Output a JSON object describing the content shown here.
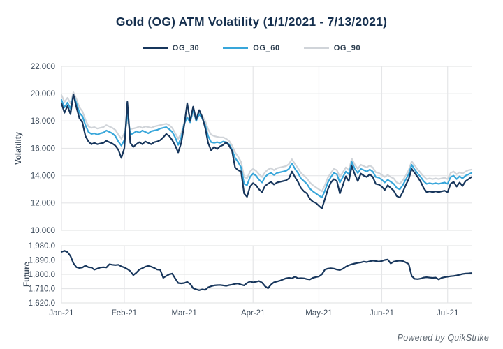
{
  "title": "Gold (OG) ATM Volatility (1/1/2021 - 7/13/2021)",
  "footer": "Powered by QuikStrike",
  "colors": {
    "navy": "#17365C",
    "blue": "#38A6DA",
    "gray": "#D0D4D9",
    "grid": "#E5E6E8",
    "tick_text": "#3E4C5C"
  },
  "legend": [
    {
      "label": "OG_30",
      "color": "#17365C"
    },
    {
      "label": "OG_60",
      "color": "#38A6DA"
    },
    {
      "label": "OG_90",
      "color": "#D0D4D9"
    }
  ],
  "chart_data": [
    {
      "type": "line",
      "title": "Gold (OG) ATM Volatility (1/1/2021 - 7/13/2021)",
      "ylabel": "Volatility",
      "xlabel": "",
      "ylim": [
        10,
        22
      ],
      "grid": true,
      "legend_position": "top",
      "yticks": [
        {
          "value": 22,
          "label": "22.000"
        },
        {
          "value": 20,
          "label": "20.000"
        },
        {
          "value": 18,
          "label": "18.000"
        },
        {
          "value": 16,
          "label": "16.000"
        },
        {
          "value": 14,
          "label": "14.000"
        },
        {
          "value": 12,
          "label": "12.000"
        },
        {
          "value": 10,
          "label": "10.000"
        }
      ],
      "xticks": [
        {
          "index": 0,
          "label": "Jan-21"
        },
        {
          "index": 21,
          "label": "Feb-21"
        },
        {
          "index": 41,
          "label": "Mar-21"
        },
        {
          "index": 64,
          "label": "Apr-21"
        },
        {
          "index": 86,
          "label": "May-21"
        },
        {
          "index": 107,
          "label": "Jun-21"
        },
        {
          "index": 129,
          "label": "Jul-21"
        }
      ],
      "show_x_labels": false,
      "series": [
        {
          "name": "OG_30",
          "color": "#17365C",
          "values": [
            19.3,
            18.6,
            19.1,
            18.5,
            19.95,
            19.0,
            18.2,
            17.9,
            16.9,
            16.5,
            16.3,
            16.4,
            16.3,
            16.35,
            16.4,
            16.55,
            16.45,
            16.35,
            16.2,
            15.9,
            15.3,
            16.0,
            19.4,
            16.4,
            16.1,
            16.3,
            16.45,
            16.3,
            16.5,
            16.4,
            16.3,
            16.45,
            16.5,
            16.6,
            16.8,
            17.05,
            16.9,
            16.6,
            16.2,
            15.7,
            16.4,
            17.7,
            19.3,
            18.0,
            19.05,
            18.1,
            18.8,
            18.3,
            17.5,
            16.4,
            15.85,
            16.1,
            15.95,
            16.15,
            16.25,
            16.45,
            16.2,
            15.8,
            14.6,
            14.4,
            14.3,
            12.7,
            12.45,
            13.2,
            13.45,
            13.3,
            13.0,
            12.8,
            13.25,
            13.4,
            13.55,
            13.35,
            13.5,
            13.55,
            13.6,
            13.65,
            13.8,
            14.3,
            13.9,
            13.55,
            13.1,
            12.85,
            12.7,
            12.3,
            12.1,
            12.0,
            11.8,
            11.6,
            12.3,
            13.0,
            13.5,
            13.75,
            13.6,
            12.7,
            13.3,
            13.95,
            13.6,
            14.7,
            14.1,
            13.6,
            14.15,
            14.0,
            13.9,
            14.1,
            13.9,
            13.4,
            13.35,
            13.2,
            12.95,
            13.3,
            13.1,
            12.9,
            12.5,
            12.4,
            12.8,
            13.3,
            13.75,
            14.5,
            14.2,
            13.9,
            13.55,
            13.1,
            12.8,
            12.85,
            12.8,
            12.85,
            12.8,
            12.85,
            12.9,
            12.8,
            13.4,
            13.55,
            13.2,
            13.5,
            13.25,
            13.6,
            13.75,
            13.9
          ]
        },
        {
          "name": "OG_60",
          "color": "#38A6DA",
          "values": [
            19.55,
            19.0,
            19.35,
            18.9,
            19.9,
            19.3,
            18.6,
            18.35,
            17.7,
            17.2,
            17.05,
            17.1,
            17.0,
            17.1,
            17.15,
            17.3,
            17.2,
            17.1,
            16.9,
            16.5,
            16.2,
            16.6,
            18.6,
            17.0,
            17.1,
            17.25,
            17.15,
            17.3,
            17.2,
            17.1,
            17.25,
            17.3,
            17.35,
            17.45,
            17.5,
            17.55,
            17.4,
            17.2,
            16.8,
            16.25,
            16.8,
            17.8,
            18.25,
            17.9,
            18.85,
            18.0,
            18.5,
            18.2,
            17.7,
            16.9,
            16.45,
            16.4,
            16.45,
            16.4,
            16.5,
            16.45,
            16.3,
            15.9,
            15.3,
            15.0,
            14.6,
            13.4,
            13.3,
            13.9,
            14.15,
            14.0,
            13.7,
            13.5,
            13.9,
            14.1,
            14.2,
            14.05,
            14.2,
            14.25,
            14.3,
            14.35,
            14.5,
            14.9,
            14.5,
            14.2,
            13.8,
            13.6,
            13.4,
            13.05,
            12.85,
            12.7,
            12.55,
            12.4,
            12.9,
            13.5,
            13.9,
            14.2,
            14.1,
            13.5,
            13.9,
            14.3,
            14.1,
            15.0,
            14.5,
            14.2,
            14.5,
            14.4,
            14.3,
            14.45,
            14.3,
            13.9,
            13.85,
            13.7,
            13.5,
            13.7,
            13.55,
            13.4,
            13.1,
            13.0,
            13.3,
            13.7,
            14.1,
            14.8,
            14.45,
            14.15,
            13.9,
            13.6,
            13.4,
            13.45,
            13.4,
            13.45,
            13.4,
            13.45,
            13.5,
            13.4,
            13.9,
            14.0,
            13.75,
            13.95,
            13.8,
            14.0,
            14.1,
            14.2
          ]
        },
        {
          "name": "OG_90",
          "color": "#D0D4D9",
          "values": [
            19.9,
            19.4,
            19.7,
            19.3,
            20.1,
            19.6,
            19.0,
            18.7,
            18.1,
            17.6,
            17.5,
            17.55,
            17.45,
            17.5,
            17.55,
            17.7,
            17.6,
            17.5,
            17.35,
            17.0,
            16.7,
            17.1,
            18.0,
            17.4,
            17.45,
            17.5,
            17.6,
            17.5,
            17.6,
            17.55,
            17.5,
            17.6,
            17.65,
            17.7,
            17.75,
            17.8,
            17.7,
            17.5,
            17.1,
            16.7,
            17.1,
            17.9,
            18.3,
            18.1,
            18.5,
            18.25,
            18.6,
            18.4,
            18.0,
            17.4,
            17.0,
            16.9,
            16.85,
            16.8,
            16.8,
            16.7,
            16.55,
            16.2,
            15.7,
            15.4,
            15.0,
            13.9,
            13.8,
            14.3,
            14.5,
            14.35,
            14.1,
            13.9,
            14.25,
            14.45,
            14.55,
            14.4,
            14.55,
            14.6,
            14.65,
            14.7,
            14.85,
            15.2,
            14.85,
            14.55,
            14.2,
            14.0,
            13.8,
            13.5,
            13.3,
            13.15,
            13.0,
            12.85,
            13.3,
            13.85,
            14.2,
            14.5,
            14.4,
            13.9,
            14.25,
            14.6,
            14.4,
            15.25,
            14.8,
            14.5,
            14.8,
            14.7,
            14.6,
            14.75,
            14.6,
            14.25,
            14.2,
            14.05,
            13.9,
            14.05,
            13.9,
            13.8,
            13.5,
            13.4,
            13.65,
            14.0,
            14.4,
            15.05,
            14.75,
            14.45,
            14.2,
            13.95,
            13.75,
            13.8,
            13.75,
            13.8,
            13.75,
            13.8,
            13.85,
            13.75,
            14.2,
            14.3,
            14.1,
            14.25,
            14.15,
            14.3,
            14.4,
            14.45
          ]
        }
      ]
    },
    {
      "type": "line",
      "title": "",
      "ylabel": "Future",
      "xlabel": "",
      "ylim": [
        1620,
        1980
      ],
      "grid": true,
      "yticks": [
        {
          "value": 1980,
          "label": "1,980.0"
        },
        {
          "value": 1890,
          "label": "1,890.0"
        },
        {
          "value": 1800,
          "label": "1,800.0"
        },
        {
          "value": 1710,
          "label": "1,710.0"
        },
        {
          "value": 1620,
          "label": "1,620.0"
        }
      ],
      "xticks": [
        {
          "index": 0,
          "label": "Jan-21"
        },
        {
          "index": 21,
          "label": "Feb-21"
        },
        {
          "index": 41,
          "label": "Mar-21"
        },
        {
          "index": 64,
          "label": "Apr-21"
        },
        {
          "index": 86,
          "label": "May-21"
        },
        {
          "index": 107,
          "label": "Jun-21"
        },
        {
          "index": 129,
          "label": "Jul-21"
        }
      ],
      "show_x_labels": true,
      "series": [
        {
          "name": "Future",
          "color": "#17365C",
          "values": [
            1941,
            1948,
            1940,
            1915,
            1870,
            1845,
            1840,
            1843,
            1855,
            1845,
            1843,
            1829,
            1836,
            1843,
            1845,
            1843,
            1863,
            1860,
            1858,
            1860,
            1850,
            1843,
            1833,
            1820,
            1795,
            1810,
            1830,
            1838,
            1848,
            1853,
            1848,
            1840,
            1830,
            1828,
            1778,
            1790,
            1800,
            1805,
            1774,
            1745,
            1743,
            1745,
            1752,
            1740,
            1712,
            1705,
            1700,
            1705,
            1702,
            1718,
            1725,
            1730,
            1732,
            1733,
            1730,
            1727,
            1732,
            1735,
            1740,
            1742,
            1735,
            1730,
            1745,
            1755,
            1750,
            1753,
            1758,
            1748,
            1725,
            1712,
            1735,
            1750,
            1755,
            1760,
            1768,
            1775,
            1778,
            1775,
            1785,
            1775,
            1776,
            1775,
            1770,
            1768,
            1778,
            1783,
            1787,
            1800,
            1830,
            1836,
            1838,
            1836,
            1830,
            1827,
            1835,
            1848,
            1857,
            1863,
            1868,
            1872,
            1875,
            1880,
            1877,
            1882,
            1886,
            1884,
            1880,
            1884,
            1890,
            1893,
            1868,
            1880,
            1884,
            1886,
            1884,
            1875,
            1865,
            1790,
            1772,
            1770,
            1773,
            1780,
            1782,
            1780,
            1778,
            1780,
            1768,
            1778,
            1782,
            1785,
            1788,
            1790,
            1793,
            1798,
            1802,
            1805,
            1806,
            1808
          ]
        }
      ]
    }
  ]
}
